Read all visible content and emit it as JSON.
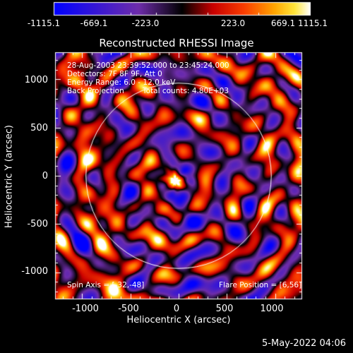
{
  "colorbar": {
    "tick_labels": [
      "-1115.1",
      "-669.1",
      "-223.0",
      "223.0",
      "669.1",
      "1115.1"
    ],
    "range": [
      -1115.1,
      1115.1
    ]
  },
  "plot": {
    "title": "Reconstructed RHESSI Image",
    "annotations": {
      "line1": "28-Aug-2003 23:39:52.000 to 23:45:24.000",
      "line2": "Detectors: 7F 8F 9F, Att 0",
      "line3": "Energy Range: 6.0 - 12.0 keV",
      "line4_left": "Back Projection",
      "line4_right": "Total counts: 4.80E+03",
      "spin_axis": "Spin Axis = [-32,-48]",
      "flare_position": "Flare Position = [6,56]"
    },
    "xaxis": {
      "label": "Heliocentric X (arcsec)",
      "ticks": [
        "-1000",
        "-500",
        "0",
        "500",
        "1000"
      ],
      "range": [
        -1280,
        1280
      ]
    },
    "yaxis": {
      "label": "Heliocentric Y (arcsec)",
      "ticks": [
        "1000",
        "500",
        "0",
        "-500",
        "-1000"
      ],
      "range": [
        -1280,
        1280
      ]
    },
    "solar_radius_arcsec": 960,
    "center_marker_arcsec": [
      -32,
      -48
    ]
  },
  "footer": {
    "date": "5-May-2022 04:06"
  }
}
